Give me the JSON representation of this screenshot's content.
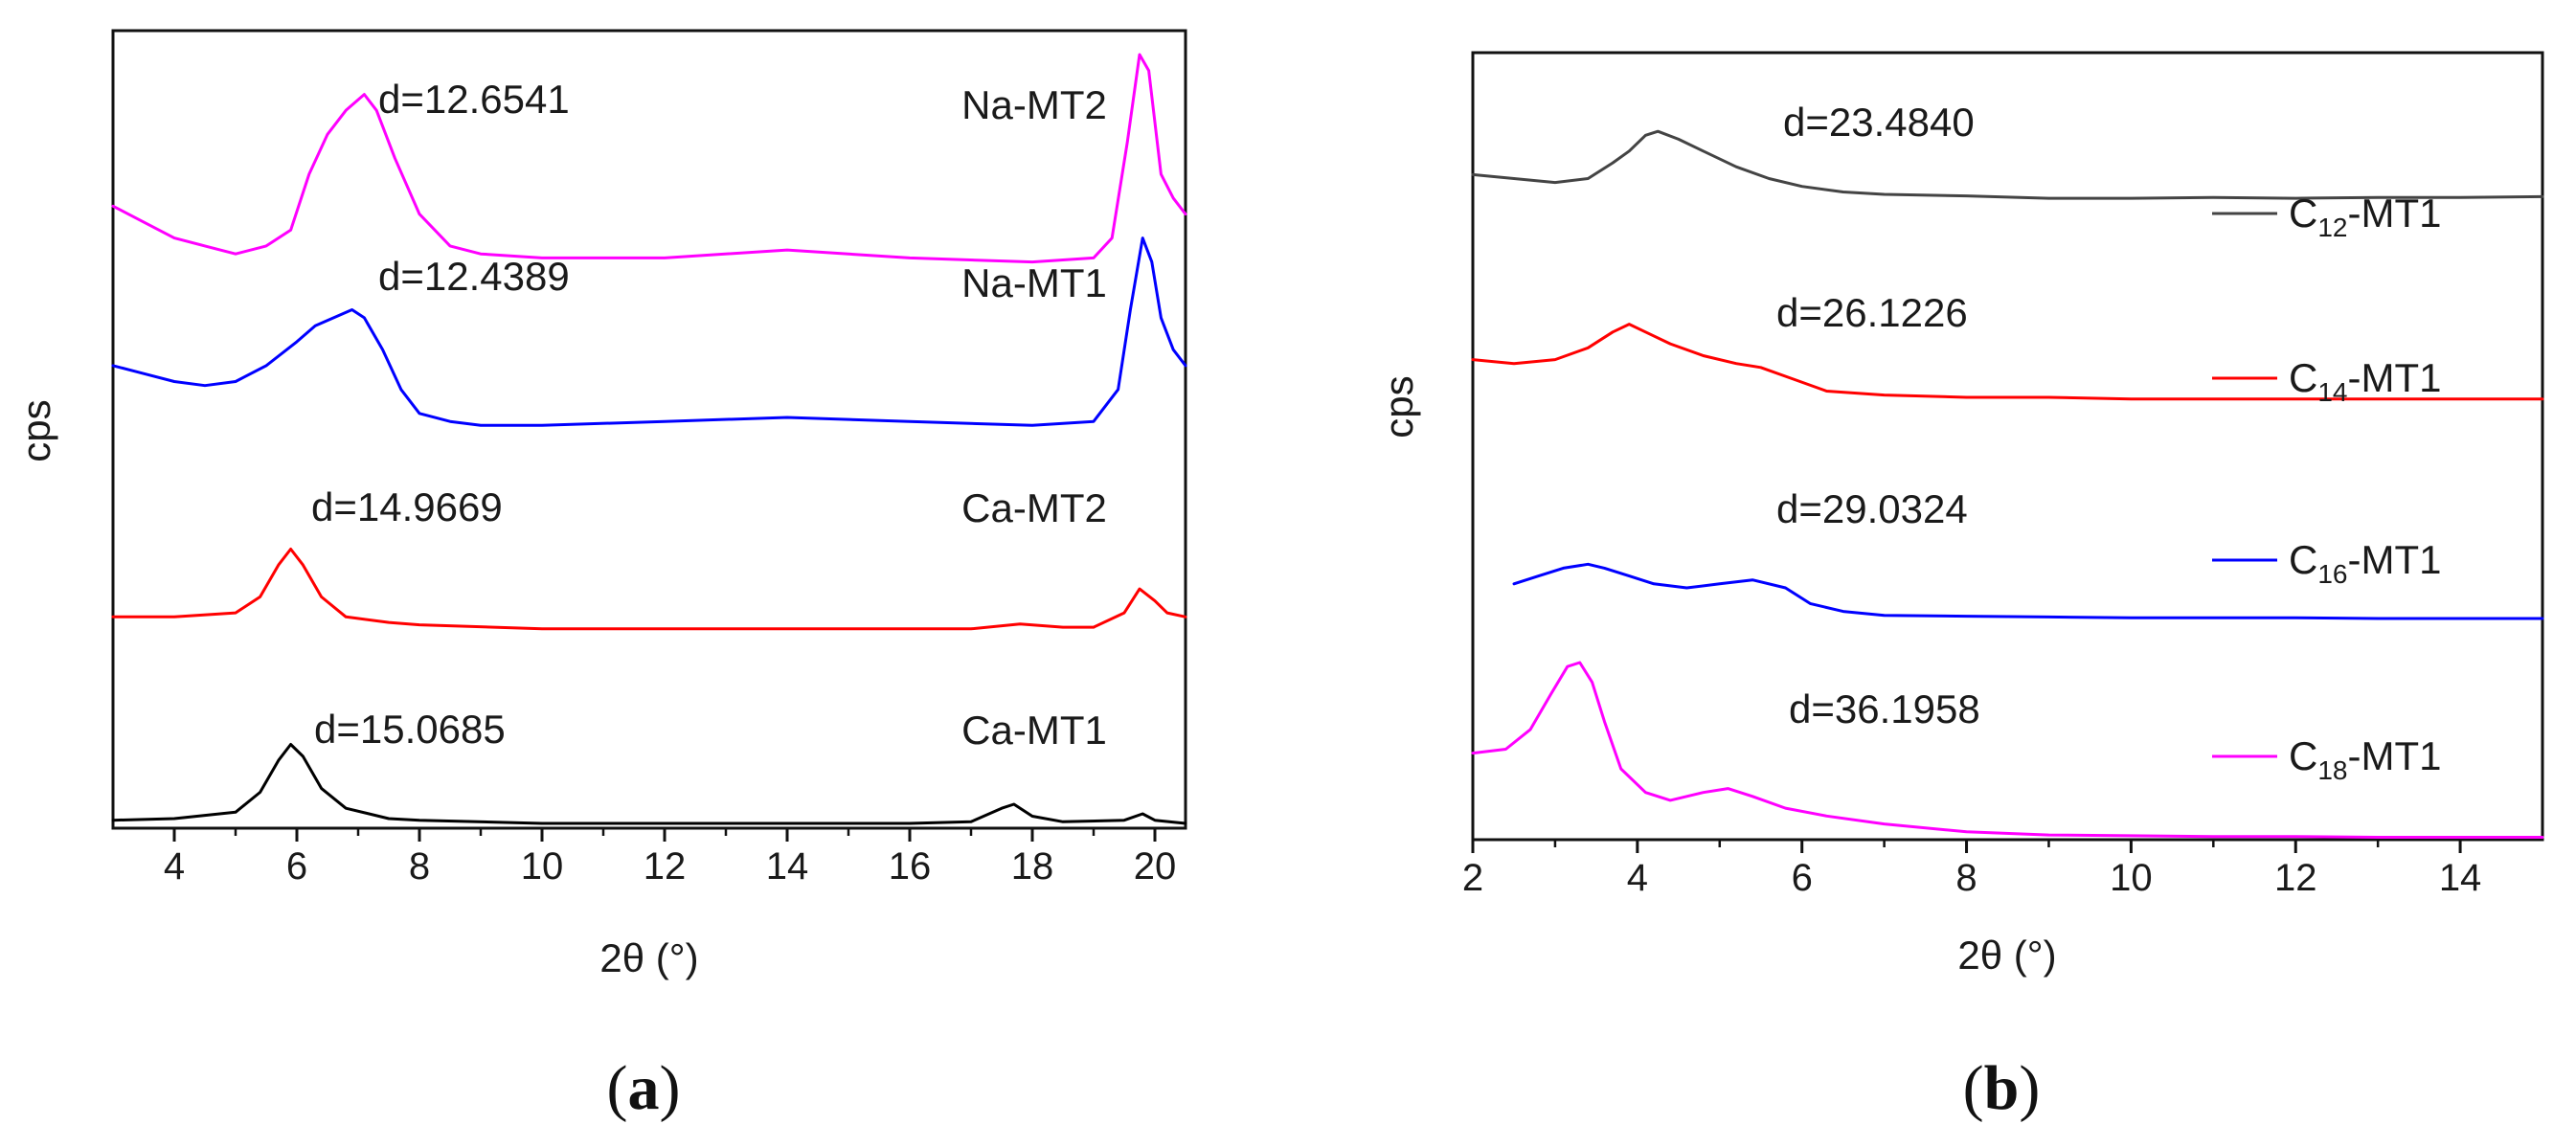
{
  "chart_data": [
    {
      "id": "a",
      "type": "line",
      "panel_label": "a",
      "xlabel": "2θ (°)",
      "ylabel": "cps",
      "xlim": [
        3,
        20.5
      ],
      "xticks": [
        "4",
        "6",
        "8",
        "10",
        "12",
        "14",
        "16",
        "18",
        "20"
      ],
      "y_ticks_shown": false,
      "series": [
        {
          "name": "Na-MT2",
          "color": "#ff00ff",
          "annotation": "d=12.6541",
          "x": [
            3,
            3.5,
            4,
            4.5,
            5,
            5.5,
            5.9,
            6.2,
            6.5,
            6.8,
            7.1,
            7.3,
            7.6,
            8,
            8.5,
            9,
            10,
            12,
            14,
            16,
            18,
            19,
            19.3,
            19.55,
            19.75,
            19.9,
            20.1,
            20.3,
            20.5
          ],
          "y": [
            0.78,
            0.76,
            0.74,
            0.73,
            0.72,
            0.73,
            0.75,
            0.82,
            0.87,
            0.9,
            0.92,
            0.9,
            0.84,
            0.77,
            0.73,
            0.72,
            0.715,
            0.715,
            0.725,
            0.715,
            0.71,
            0.715,
            0.74,
            0.86,
            0.97,
            0.95,
            0.82,
            0.79,
            0.77
          ]
        },
        {
          "name": "Na-MT1",
          "color": "#0000ff",
          "annotation": "d=12.4389",
          "x": [
            3,
            3.5,
            4,
            4.5,
            5,
            5.5,
            6,
            6.3,
            6.6,
            6.9,
            7.1,
            7.4,
            7.7,
            8,
            8.5,
            9,
            10,
            12,
            14,
            16,
            18,
            19,
            19.4,
            19.6,
            19.8,
            19.95,
            20.1,
            20.3,
            20.5
          ],
          "y": [
            0.58,
            0.57,
            0.56,
            0.555,
            0.56,
            0.58,
            0.61,
            0.63,
            0.64,
            0.65,
            0.64,
            0.6,
            0.55,
            0.52,
            0.51,
            0.505,
            0.505,
            0.51,
            0.515,
            0.51,
            0.505,
            0.51,
            0.55,
            0.65,
            0.74,
            0.71,
            0.64,
            0.6,
            0.58
          ]
        },
        {
          "name": "Ca-MT2",
          "color": "#ff0000",
          "annotation": "d=14.9669",
          "x": [
            3,
            4,
            5,
            5.4,
            5.7,
            5.9,
            6.1,
            6.4,
            6.8,
            7.5,
            8,
            10,
            12,
            14,
            16,
            17,
            17.8,
            18.5,
            19,
            19.5,
            19.75,
            20,
            20.2,
            20.5
          ],
          "y": [
            0.265,
            0.265,
            0.27,
            0.29,
            0.33,
            0.35,
            0.33,
            0.29,
            0.265,
            0.258,
            0.255,
            0.25,
            0.25,
            0.25,
            0.25,
            0.25,
            0.256,
            0.252,
            0.252,
            0.27,
            0.3,
            0.285,
            0.27,
            0.265
          ]
        },
        {
          "name": "Ca-MT1",
          "color": "#000000",
          "annotation": "d=15.0685",
          "x": [
            3,
            4,
            5,
            5.4,
            5.7,
            5.9,
            6.1,
            6.4,
            6.8,
            7.5,
            8,
            10,
            12,
            14,
            16,
            17,
            17.5,
            17.7,
            18,
            18.5,
            19.5,
            19.8,
            20,
            20.5
          ],
          "y": [
            0.01,
            0.012,
            0.02,
            0.045,
            0.085,
            0.105,
            0.09,
            0.05,
            0.025,
            0.012,
            0.01,
            0.006,
            0.006,
            0.006,
            0.006,
            0.008,
            0.025,
            0.03,
            0.015,
            0.008,
            0.01,
            0.018,
            0.01,
            0.006
          ]
        }
      ]
    },
    {
      "id": "b",
      "type": "line",
      "panel_label": "b",
      "xlabel": "2θ (°)",
      "ylabel": "cps",
      "xlim": [
        2,
        15
      ],
      "xticks": [
        "2",
        "4",
        "6",
        "8",
        "10",
        "12",
        "14"
      ],
      "y_ticks_shown": false,
      "series": [
        {
          "name": "C12-MT1",
          "label_main": "C",
          "label_sub": "12",
          "label_rest": "-MT1",
          "color": "#444444",
          "annotation": "d=23.4840",
          "x": [
            2,
            2.5,
            3,
            3.4,
            3.7,
            3.9,
            4.1,
            4.25,
            4.5,
            4.8,
            5.2,
            5.6,
            6,
            6.5,
            7,
            8,
            9,
            10,
            11,
            12,
            13,
            14,
            15
          ],
          "y": [
            0.845,
            0.84,
            0.835,
            0.84,
            0.86,
            0.875,
            0.895,
            0.9,
            0.89,
            0.875,
            0.855,
            0.84,
            0.83,
            0.823,
            0.82,
            0.818,
            0.815,
            0.815,
            0.816,
            0.815,
            0.816,
            0.816,
            0.817
          ]
        },
        {
          "name": "C14-MT1",
          "label_main": "C",
          "label_sub": "14",
          "label_rest": "-MT1",
          "color": "#ff0000",
          "annotation": "d=26.1226",
          "x": [
            2,
            2.5,
            3,
            3.4,
            3.7,
            3.9,
            4.1,
            4.4,
            4.8,
            5.2,
            5.5,
            5.9,
            6.3,
            7,
            8,
            9,
            10,
            11,
            12,
            13,
            14,
            15
          ],
          "y": [
            0.61,
            0.605,
            0.61,
            0.625,
            0.645,
            0.655,
            0.645,
            0.63,
            0.615,
            0.605,
            0.6,
            0.585,
            0.57,
            0.565,
            0.562,
            0.562,
            0.56,
            0.56,
            0.56,
            0.56,
            0.56,
            0.56
          ]
        },
        {
          "name": "C16-MT1",
          "label_main": "C",
          "label_sub": "16",
          "label_rest": "-MT1",
          "color": "#0000ff",
          "annotation": "d=29.0324",
          "x": [
            2.5,
            2.8,
            3.1,
            3.4,
            3.6,
            3.9,
            4.2,
            4.6,
            5,
            5.4,
            5.8,
            6.1,
            6.5,
            7,
            8,
            9,
            10,
            11,
            12,
            13,
            14,
            15
          ],
          "y": [
            0.325,
            0.335,
            0.345,
            0.35,
            0.345,
            0.335,
            0.325,
            0.32,
            0.325,
            0.33,
            0.32,
            0.3,
            0.29,
            0.285,
            0.284,
            0.283,
            0.282,
            0.282,
            0.282,
            0.281,
            0.281,
            0.281
          ]
        },
        {
          "name": "C18-MT1",
          "label_main": "C",
          "label_sub": "18",
          "label_rest": "-MT1",
          "color": "#ff00ff",
          "annotation": "d=36.1958",
          "x": [
            2,
            2.4,
            2.7,
            2.95,
            3.15,
            3.3,
            3.45,
            3.6,
            3.8,
            4.1,
            4.4,
            4.8,
            5.1,
            5.4,
            5.8,
            6.3,
            7,
            8,
            9,
            10,
            11,
            12,
            13,
            14,
            15
          ],
          "y": [
            0.11,
            0.115,
            0.14,
            0.185,
            0.22,
            0.225,
            0.2,
            0.15,
            0.09,
            0.06,
            0.05,
            0.06,
            0.065,
            0.055,
            0.04,
            0.03,
            0.02,
            0.01,
            0.006,
            0.005,
            0.004,
            0.004,
            0.003,
            0.003,
            0.003
          ]
        }
      ]
    }
  ]
}
